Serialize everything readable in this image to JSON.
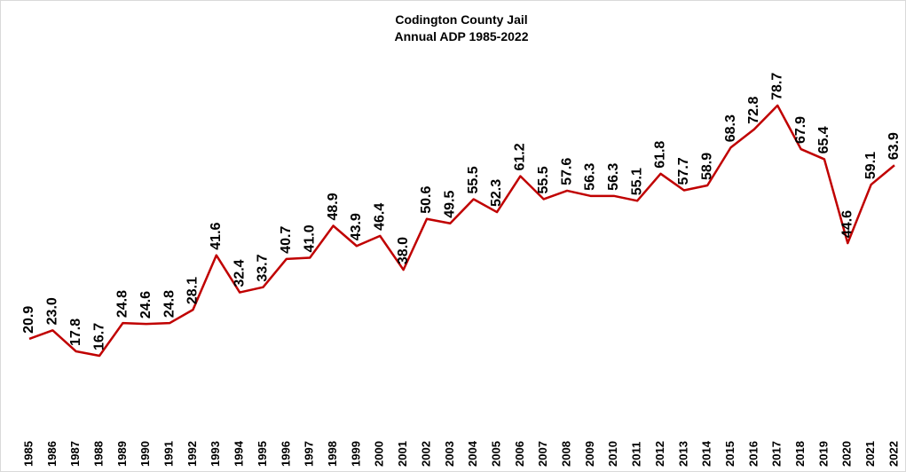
{
  "chart_data": {
    "type": "line",
    "title": "Codington County Jail",
    "subtitle": "Annual ADP  1985-2022",
    "categories": [
      "1985",
      "1986",
      "1987",
      "1988",
      "1989",
      "1990",
      "1991",
      "1992",
      "1993",
      "1994",
      "1995",
      "1996",
      "1997",
      "1998",
      "1999",
      "2000",
      "2001",
      "2002",
      "2003",
      "2004",
      "2005",
      "2006",
      "2007",
      "2008",
      "2009",
      "2010",
      "2011",
      "2012",
      "2013",
      "2014",
      "2015",
      "2016",
      "2017",
      "2018",
      "2019",
      "2020",
      "2021",
      "2022"
    ],
    "series": [
      {
        "name": "ADP",
        "color": "#c00000",
        "values": [
          20.9,
          23.0,
          17.8,
          16.7,
          24.8,
          24.6,
          24.8,
          28.1,
          41.6,
          32.4,
          33.7,
          40.7,
          41.0,
          48.9,
          43.9,
          46.4,
          38.0,
          50.6,
          49.5,
          55.5,
          52.3,
          61.2,
          55.5,
          57.6,
          56.3,
          56.3,
          55.1,
          61.8,
          57.7,
          58.9,
          68.3,
          72.8,
          78.7,
          67.9,
          65.4,
          44.6,
          59.1,
          63.9
        ],
        "value_labels": [
          "20.9",
          "23.0",
          "17.8",
          "16.7",
          "24.8",
          "24.6",
          "24.8",
          "28.1",
          "41.6",
          "32.4",
          "33.7",
          "40.7",
          "41.0",
          "48.9",
          "43.9",
          "46.4",
          "38.0",
          "50.6",
          "49.5",
          "55.5",
          "52.3",
          "61.2",
          "55.5",
          "57.6",
          "56.3",
          "56.3",
          "55.1",
          "61.8",
          "57.7",
          "58.9",
          "68.3",
          "72.8",
          "78.7",
          "67.9",
          "65.4",
          "44.6",
          "59.1",
          "63.9"
        ]
      }
    ],
    "ylim": [
      0,
      100
    ]
  }
}
